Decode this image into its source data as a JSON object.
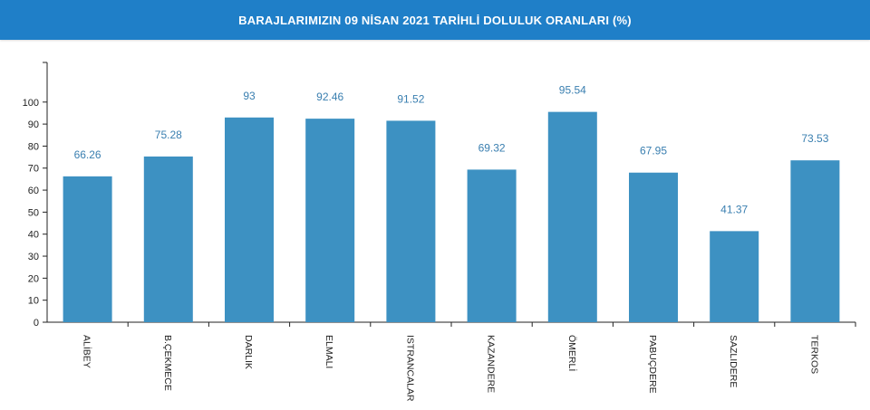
{
  "header": {
    "title": "BARAJLARIMIZIN 09 NİSAN 2021 TARİHLİ DOLULUK ORANLARI (%)"
  },
  "colors": {
    "header_bg": "#1f7fc8",
    "bar": "#3d91c2",
    "data_label": "#3a7fb0",
    "axis": "#222222"
  },
  "chart_data": {
    "type": "bar",
    "title": "BARAJLARIMIZIN 09 NİSAN 2021 TARİHLİ DOLULUK ORANLARI (%)",
    "categories": [
      "ALİBEY",
      "B.ÇEKMECE",
      "DARLIK",
      "ELMALI",
      "ISTRANCALAR",
      "KAZANDERE",
      "ÖMERLİ",
      "PABUÇDERE",
      "SAZLIDERE",
      "TERKOS"
    ],
    "values": [
      66.26,
      75.28,
      93,
      92.46,
      91.52,
      69.32,
      95.54,
      67.95,
      41.37,
      73.53
    ],
    "data_labels": [
      "66.26",
      "75.28",
      "93",
      "92.46",
      "91.52",
      "69.32",
      "95.54",
      "67.95",
      "41.37",
      "73.53"
    ],
    "y_ticks": [
      0,
      10,
      20,
      30,
      40,
      50,
      60,
      70,
      80,
      90,
      100
    ],
    "ylim": [
      0,
      118
    ],
    "xlabel": "",
    "ylabel": "",
    "grid": false,
    "legend": "none"
  }
}
